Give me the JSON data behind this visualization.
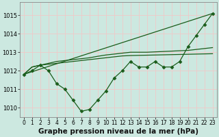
{
  "bg_color": "#cce8e0",
  "grid_color": "#f0c8c8",
  "line_color": "#1a5c1a",
  "marker": "D",
  "markersize": 2.5,
  "linewidth": 0.9,
  "xlabel": "Graphe pression niveau de la mer (hPa)",
  "xlabel_fontsize": 7.5,
  "xlim": [
    -0.5,
    23.5
  ],
  "ylim": [
    1009.5,
    1015.7
  ],
  "yticks": [
    1010,
    1011,
    1012,
    1013,
    1014,
    1015
  ],
  "xtick_labels": [
    "0",
    "1",
    "2",
    "3",
    "4",
    "5",
    "6",
    "7",
    "8",
    "9",
    "10",
    "11",
    "12",
    "13",
    "14",
    "15",
    "16",
    "17",
    "18",
    "19",
    "20",
    "21",
    "22",
    "23"
  ],
  "series": [
    {
      "x": [
        0,
        1,
        2,
        3,
        4,
        5,
        6,
        7,
        8,
        9,
        10,
        11,
        12,
        13,
        14,
        15,
        16,
        17,
        18,
        19,
        20,
        21,
        22,
        23
      ],
      "y": [
        1011.8,
        1012.0,
        1012.3,
        1012.0,
        1011.3,
        1011.0,
        1010.4,
        1009.8,
        1009.9,
        1010.4,
        1010.9,
        1011.6,
        1012.0,
        1012.5,
        1012.2,
        1012.2,
        1012.5,
        1012.2,
        1012.2,
        1012.5,
        1013.3,
        1013.9,
        1014.5,
        1015.1
      ],
      "has_markers": true
    },
    {
      "x": [
        0,
        1,
        2,
        3,
        4,
        5,
        6,
        7,
        8,
        9,
        10,
        11,
        12,
        13,
        14,
        15,
        16,
        17,
        18,
        19,
        20,
        21,
        22,
        23
      ],
      "y": [
        1011.8,
        1012.2,
        1012.3,
        1012.35,
        1012.4,
        1012.45,
        1012.5,
        1012.55,
        1012.6,
        1012.65,
        1012.7,
        1012.75,
        1012.8,
        1012.82,
        1012.83,
        1012.84,
        1012.85,
        1012.86,
        1012.87,
        1012.88,
        1012.89,
        1012.9,
        1012.91,
        1012.92
      ],
      "has_markers": false
    },
    {
      "x": [
        0,
        1,
        2,
        3,
        4,
        5,
        6,
        7,
        8,
        9,
        10,
        11,
        12,
        13,
        14,
        15,
        16,
        17,
        18,
        19,
        20,
        21,
        22,
        23
      ],
      "y": [
        1011.8,
        1012.2,
        1012.3,
        1012.4,
        1012.5,
        1012.55,
        1012.6,
        1012.65,
        1012.7,
        1012.78,
        1012.85,
        1012.9,
        1012.95,
        1013.0,
        1013.0,
        1013.0,
        1013.02,
        1013.04,
        1013.06,
        1013.08,
        1013.1,
        1013.15,
        1013.2,
        1013.25
      ],
      "has_markers": false
    },
    {
      "x": [
        0,
        23
      ],
      "y": [
        1011.8,
        1015.1
      ],
      "has_markers": false
    }
  ]
}
